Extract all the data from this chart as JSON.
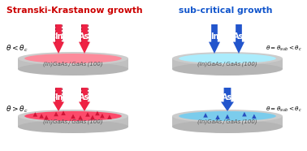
{
  "title_left": "Stranski-Krastanow growth",
  "title_right": "sub-critical growth",
  "title_left_color": "#cc0000",
  "title_right_color": "#1155cc",
  "substrate_label": "(In)GaAs / GaAs (100)",
  "gray_body": "#c2c2c2",
  "gray_bottom": "#b0b0b0",
  "gray_top": "#cdcdcd",
  "film_pink_light": "#ff8899",
  "film_pink_dark": "#ff4466",
  "film_blue_light": "#aaeeff",
  "film_blue_dark": "#77ccee",
  "arrow_red": "#ee2244",
  "arrow_blue": "#2255cc",
  "dot_red": "#cc1133",
  "dot_blue": "#2244bb",
  "fig_width": 3.78,
  "fig_height": 1.86,
  "dpi": 100
}
